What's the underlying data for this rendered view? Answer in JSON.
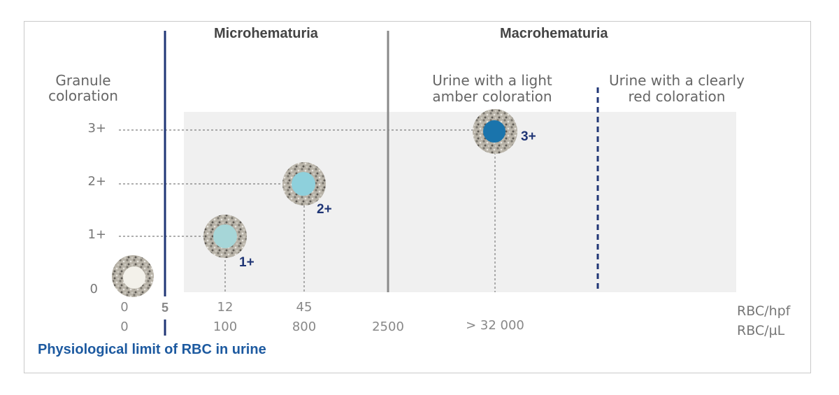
{
  "headers": {
    "microhematuria": "Microhematuria",
    "macrohematuria": "Macrohematuria"
  },
  "y_axis": {
    "title_line1": "Granule",
    "title_line2": "coloration",
    "ticks": [
      "3+",
      "2+",
      "1+",
      "0"
    ]
  },
  "macro_labels": {
    "light_amber_line1": "Urine with a light",
    "light_amber_line2": "amber coloration",
    "clearly_red_line1": "Urine with a clearly",
    "clearly_red_line2": "red coloration"
  },
  "x_axis": {
    "hpf_values": [
      "0",
      "5",
      "12",
      "45"
    ],
    "ul_values": [
      "0",
      "100",
      "800",
      "2500",
      "> 32 000"
    ],
    "unit_hpf": "RBC/hpf",
    "unit_ul": "RBC/µL"
  },
  "granules": [
    {
      "grade": "",
      "inner_color": "#f3f1ea"
    },
    {
      "grade": "1+",
      "inner_color": "#a6d6d8"
    },
    {
      "grade": "2+",
      "inner_color": "#8ed0dc"
    },
    {
      "grade": "3+",
      "inner_color": "#1a74ac"
    }
  ],
  "footer": {
    "physiological_limit": "Physiological limit of RBC in urine"
  },
  "colors": {
    "dark_blue": "#1f3575",
    "limit_text": "#1d5aa0",
    "gray_divider": "#8a8a8a",
    "shade": "#f0f0f0"
  }
}
